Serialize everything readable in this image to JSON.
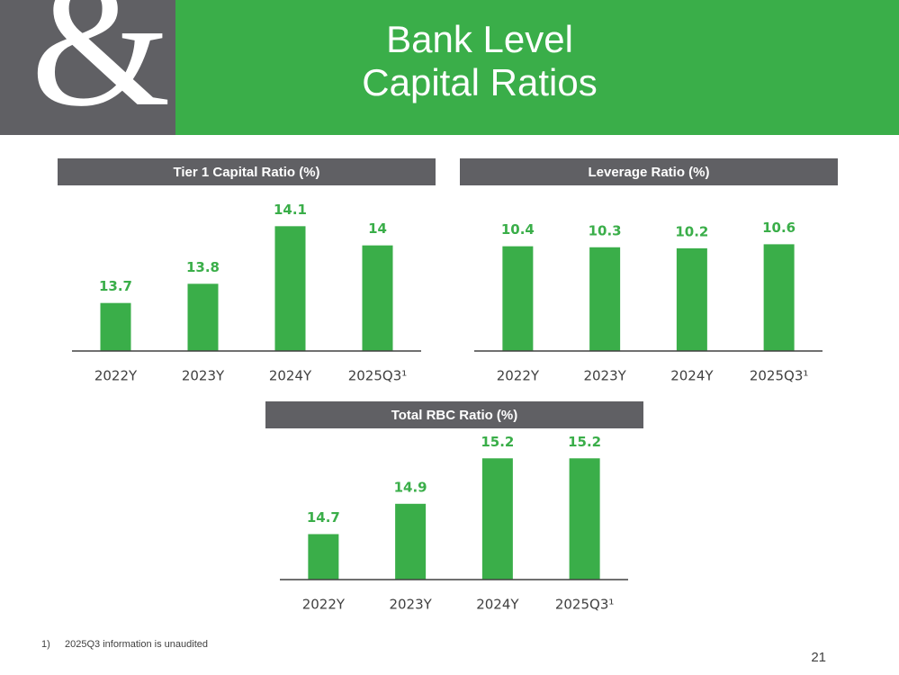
{
  "header": {
    "logo": "&",
    "title_lines": [
      "Bank Level",
      "Capital Ratios"
    ]
  },
  "chart_data": [
    {
      "type": "bar",
      "title": "Tier 1 Capital Ratio (%)",
      "categories": [
        "2022Y",
        "2023Y",
        "2024Y",
        "2025Q3¹"
      ],
      "values": [
        13.7,
        13.8,
        14.1,
        14.0
      ],
      "color": "#3aae49",
      "ylim": [
        13.45,
        14.2
      ]
    },
    {
      "type": "bar",
      "title": "Leverage Ratio (%)",
      "categories": [
        "2022Y",
        "2023Y",
        "2024Y",
        "2025Q3¹"
      ],
      "values": [
        10.4,
        10.3,
        10.2,
        10.6
      ],
      "color": "#3aae49",
      "ylim": [
        0,
        14.3
      ]
    },
    {
      "type": "bar",
      "title": "Total RBC Ratio (%)",
      "categories": [
        "2022Y",
        "2023Y",
        "2024Y",
        "2025Q3¹"
      ],
      "values": [
        14.7,
        14.9,
        15.2,
        15.2
      ],
      "color": "#3aae49",
      "ylim": [
        14.4,
        15.35
      ]
    }
  ],
  "footnote": {
    "marker": "1)",
    "text": "2025Q3 information is unaudited"
  },
  "page_number": "21"
}
